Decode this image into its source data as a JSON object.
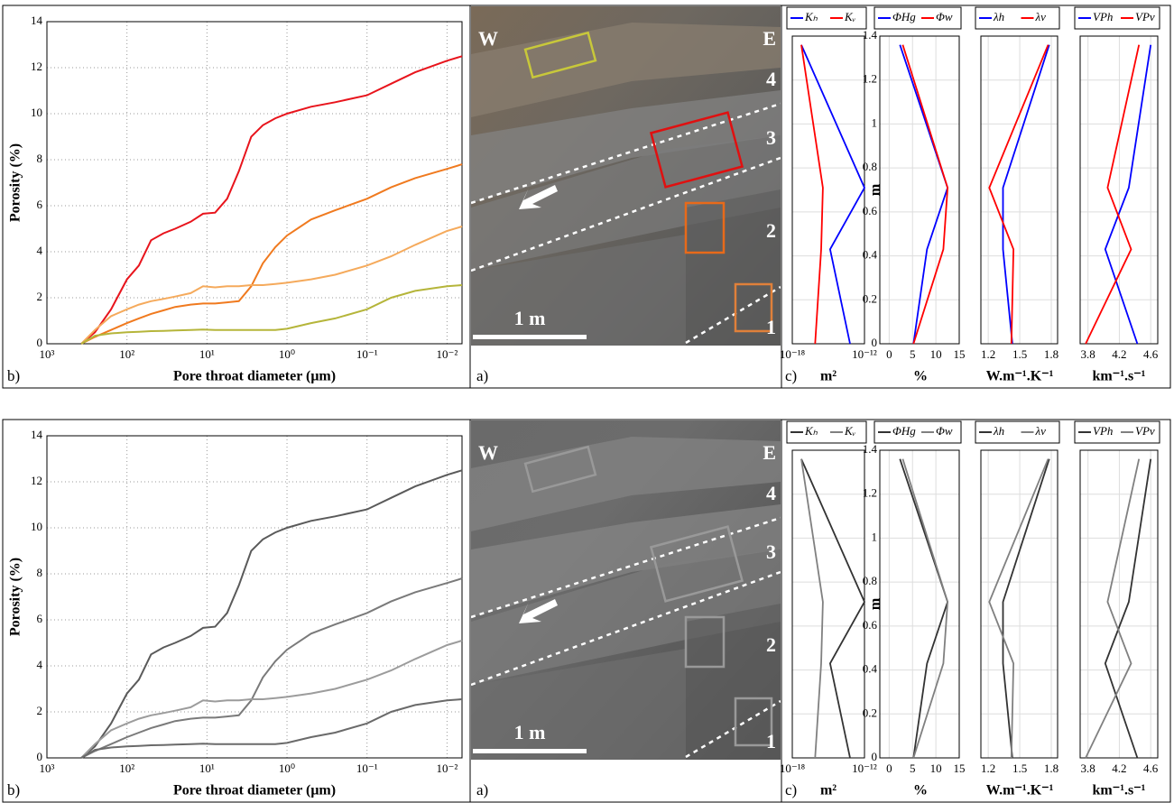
{
  "chart_data": [
    {
      "type": "line",
      "panel_label": "b)",
      "xlabel": "Pore throat diameter (μm)",
      "ylabel": "Porosity (%)",
      "xscale": "log",
      "grid": true,
      "x": [
        372,
        251,
        158,
        100,
        71,
        50,
        35,
        25,
        16,
        11.2,
        7.9,
        5.6,
        4.0,
        2.8,
        2.0,
        1.4,
        1,
        0.5,
        0.25,
        0.1,
        0.05,
        0.025,
        0.01,
        0.0065
      ],
      "xlim": [
        1000,
        0.0065
      ],
      "xticks": [
        {
          "value": 1000,
          "label": "10³"
        },
        {
          "value": 100,
          "label": "10²"
        },
        {
          "value": 10,
          "label": "10¹"
        },
        {
          "value": 1,
          "label": "10⁰"
        },
        {
          "value": 0.1,
          "label": "10⁻¹"
        },
        {
          "value": 0.01,
          "label": "10⁻²"
        }
      ],
      "ylim": [
        0,
        14
      ],
      "yticks": [
        0,
        2,
        4,
        6,
        8,
        10,
        12,
        14
      ],
      "series": [
        {
          "color": "#e8141c",
          "values": [
            0,
            0.5,
            1.5,
            2.8,
            3.4,
            4.5,
            4.8,
            5.0,
            5.3,
            5.65,
            5.7,
            6.3,
            7.5,
            9.0,
            9.5,
            9.8,
            10.0,
            10.3,
            10.5,
            10.8,
            11.3,
            11.8,
            12.3,
            12.5
          ]
        },
        {
          "color": "#f07a1f",
          "values": [
            0,
            0.3,
            0.6,
            0.9,
            1.1,
            1.3,
            1.45,
            1.6,
            1.7,
            1.75,
            1.75,
            1.8,
            1.85,
            2.5,
            3.5,
            4.2,
            4.7,
            5.4,
            5.8,
            6.3,
            6.8,
            7.2,
            7.6,
            7.8
          ]
        },
        {
          "color": "#f5aa5c",
          "values": [
            0,
            0.6,
            1.2,
            1.5,
            1.7,
            1.85,
            1.95,
            2.05,
            2.2,
            2.5,
            2.45,
            2.5,
            2.5,
            2.55,
            2.55,
            2.6,
            2.65,
            2.8,
            3.0,
            3.4,
            3.8,
            4.3,
            4.9,
            5.1
          ]
        },
        {
          "color": "#b5b53a",
          "values": [
            0,
            0.35,
            0.45,
            0.5,
            0.52,
            0.55,
            0.56,
            0.58,
            0.6,
            0.62,
            0.6,
            0.6,
            0.6,
            0.6,
            0.6,
            0.6,
            0.65,
            0.9,
            1.1,
            1.5,
            2.0,
            2.3,
            2.5,
            2.55
          ]
        }
      ]
    },
    {
      "type": "profile",
      "panel_label": "c)",
      "xlabel": "m²",
      "xscale": "log",
      "xlim": [
        1e-18,
        1e-12
      ],
      "xticks": [
        {
          "value": 1e-18,
          "label": "10⁻¹⁸"
        },
        {
          "value": 1e-12,
          "label": "10⁻¹²"
        }
      ],
      "ylim": [
        0,
        1.4
      ],
      "yticks": [
        0,
        0.2,
        0.4,
        0.6,
        0.8,
        1,
        1.2,
        1.4
      ],
      "ytick_labels": false,
      "grid": true,
      "legend": "top",
      "y": [
        1.36,
        0.71,
        0.43,
        0
      ],
      "series": [
        {
          "name": "Kₕ",
          "color": "#0000ff",
          "values": [
            5.6e-18,
            1e-12,
            1.4e-15,
            6.3e-14
          ]
        },
        {
          "name": "Kᵥ",
          "color": "#ff0000",
          "values": [
            5.6e-18,
            3.5e-16,
            2.5e-16,
            7.9e-17
          ]
        }
      ]
    },
    {
      "type": "profile",
      "xlabel": "%",
      "ylabel": "m",
      "xlim": [
        -2,
        15
      ],
      "xticks": [
        0,
        5,
        10,
        15
      ],
      "ylim": [
        0,
        1.4
      ],
      "yticks": [
        0,
        0.2,
        0.4,
        0.6,
        0.8,
        1,
        1.2,
        1.4
      ],
      "ytick_labels": true,
      "grid": true,
      "legend": "top",
      "y": [
        1.36,
        0.71,
        0.43,
        0
      ],
      "series": [
        {
          "name": "ΦHg",
          "color": "#0000ff",
          "values": [
            2.3,
            12.5,
            8.1,
            5.2
          ]
        },
        {
          "name": "Φw",
          "color": "#ff0000",
          "values": [
            2.9,
            12.5,
            11.6,
            5.2
          ]
        }
      ]
    },
    {
      "type": "profile",
      "xlabel": "W.m⁻¹.K⁻¹",
      "xlim": [
        1.13,
        1.86
      ],
      "xticks": [
        1.2,
        1.5,
        1.8
      ],
      "ylim": [
        0,
        1.4
      ],
      "yticks": [
        0,
        0.2,
        0.4,
        0.6,
        0.8,
        1,
        1.2,
        1.4
      ],
      "ytick_labels": false,
      "grid": true,
      "legend": "top",
      "y": [
        1.36,
        0.71,
        0.43,
        0
      ],
      "series": [
        {
          "name": "λh",
          "color": "#0000ff",
          "values": [
            1.78,
            1.34,
            1.34,
            1.43
          ]
        },
        {
          "name": "λv",
          "color": "#ff0000",
          "values": [
            1.77,
            1.21,
            1.44,
            1.42
          ]
        }
      ]
    },
    {
      "type": "profile",
      "xlabel": "km⁻¹.s⁻¹",
      "xlim": [
        3.7,
        4.69
      ],
      "xticks": [
        3.8,
        4.2,
        4.6
      ],
      "ylim": [
        0,
        1.4
      ],
      "yticks": [
        0,
        0.2,
        0.4,
        0.6,
        0.8,
        1,
        1.2,
        1.4
      ],
      "ytick_labels": false,
      "grid": true,
      "legend": "top",
      "y": [
        1.36,
        0.71,
        0.43,
        0
      ],
      "series": [
        {
          "name": "VPh",
          "color": "#0000ff",
          "values": [
            4.6,
            4.32,
            4.02,
            4.43
          ]
        },
        {
          "name": "VPv",
          "color": "#ff0000",
          "values": [
            4.45,
            4.05,
            4.35,
            3.77
          ]
        }
      ]
    },
    {
      "type": "line",
      "panel_label": "b)",
      "xlabel": "Pore throat diameter (μm)",
      "ylabel": "Porosity (%)",
      "xscale": "log",
      "grid": true,
      "x": [
        372,
        251,
        158,
        100,
        71,
        50,
        35,
        25,
        16,
        11.2,
        7.9,
        5.6,
        4.0,
        2.8,
        2.0,
        1.4,
        1,
        0.5,
        0.25,
        0.1,
        0.05,
        0.025,
        0.01,
        0.0065
      ],
      "xlim": [
        1000,
        0.0065
      ],
      "xticks": [
        {
          "value": 1000,
          "label": "10³"
        },
        {
          "value": 100,
          "label": "10²"
        },
        {
          "value": 10,
          "label": "10¹"
        },
        {
          "value": 1,
          "label": "10⁰"
        },
        {
          "value": 0.1,
          "label": "10⁻¹"
        },
        {
          "value": 0.01,
          "label": "10⁻²"
        }
      ],
      "ylim": [
        0,
        14
      ],
      "yticks": [
        0,
        2,
        4,
        6,
        8,
        10,
        12,
        14
      ],
      "series": [
        {
          "color": "#5a5a5a",
          "values": [
            0,
            0.5,
            1.5,
            2.8,
            3.4,
            4.5,
            4.8,
            5.0,
            5.3,
            5.65,
            5.7,
            6.3,
            7.5,
            9.0,
            9.5,
            9.8,
            10.0,
            10.3,
            10.5,
            10.8,
            11.3,
            11.8,
            12.3,
            12.5
          ]
        },
        {
          "color": "#7a7a7a",
          "values": [
            0,
            0.3,
            0.6,
            0.9,
            1.1,
            1.3,
            1.45,
            1.6,
            1.7,
            1.75,
            1.75,
            1.8,
            1.85,
            2.5,
            3.5,
            4.2,
            4.7,
            5.4,
            5.8,
            6.3,
            6.8,
            7.2,
            7.6,
            7.8
          ]
        },
        {
          "color": "#9c9c9c",
          "values": [
            0,
            0.6,
            1.2,
            1.5,
            1.7,
            1.85,
            1.95,
            2.05,
            2.2,
            2.5,
            2.45,
            2.5,
            2.5,
            2.55,
            2.55,
            2.6,
            2.65,
            2.8,
            3.0,
            3.4,
            3.8,
            4.3,
            4.9,
            5.1
          ]
        },
        {
          "color": "#6a6a6a",
          "values": [
            0,
            0.35,
            0.45,
            0.5,
            0.52,
            0.55,
            0.56,
            0.58,
            0.6,
            0.62,
            0.6,
            0.6,
            0.6,
            0.6,
            0.6,
            0.6,
            0.65,
            0.9,
            1.1,
            1.5,
            2.0,
            2.3,
            2.5,
            2.55
          ]
        }
      ]
    },
    {
      "type": "profile",
      "panel_label": "c)",
      "xlabel": "m²",
      "xscale": "log",
      "xlim": [
        1e-18,
        1e-12
      ],
      "xticks": [
        {
          "value": 1e-18,
          "label": "10⁻¹⁸"
        },
        {
          "value": 1e-12,
          "label": "10⁻¹²"
        }
      ],
      "ylim": [
        0,
        1.4
      ],
      "yticks": [
        0,
        0.2,
        0.4,
        0.6,
        0.8,
        1,
        1.2,
        1.4
      ],
      "ytick_labels": false,
      "grid": true,
      "legend": "top",
      "y": [
        1.36,
        0.71,
        0.43,
        0
      ],
      "series": [
        {
          "name": "Kₕ",
          "color": "#333333",
          "values": [
            5.6e-18,
            1e-12,
            1.4e-15,
            6.3e-14
          ]
        },
        {
          "name": "Kᵥ",
          "color": "#808080",
          "values": [
            5.6e-18,
            3.5e-16,
            2.5e-16,
            7.9e-17
          ]
        }
      ]
    },
    {
      "type": "profile",
      "xlabel": "%",
      "ylabel": "m",
      "xlim": [
        -2,
        15
      ],
      "xticks": [
        0,
        5,
        10,
        15
      ],
      "ylim": [
        0,
        1.4
      ],
      "yticks": [
        0,
        0.2,
        0.4,
        0.6,
        0.8,
        1,
        1.2,
        1.4
      ],
      "ytick_labels": true,
      "grid": true,
      "legend": "top",
      "y": [
        1.36,
        0.71,
        0.43,
        0
      ],
      "series": [
        {
          "name": "ΦHg",
          "color": "#333333",
          "values": [
            2.3,
            12.5,
            8.1,
            5.2
          ]
        },
        {
          "name": "Φw",
          "color": "#808080",
          "values": [
            2.9,
            12.5,
            11.6,
            5.2
          ]
        }
      ]
    },
    {
      "type": "profile",
      "xlabel": "W.m⁻¹.K⁻¹",
      "xlim": [
        1.13,
        1.86
      ],
      "xticks": [
        1.2,
        1.5,
        1.8
      ],
      "ylim": [
        0,
        1.4
      ],
      "yticks": [
        0,
        0.2,
        0.4,
        0.6,
        0.8,
        1,
        1.2,
        1.4
      ],
      "ytick_labels": false,
      "grid": true,
      "legend": "top",
      "y": [
        1.36,
        0.71,
        0.43,
        0
      ],
      "series": [
        {
          "name": "λh",
          "color": "#333333",
          "values": [
            1.78,
            1.34,
            1.34,
            1.43
          ]
        },
        {
          "name": "λv",
          "color": "#808080",
          "values": [
            1.77,
            1.21,
            1.44,
            1.42
          ]
        }
      ]
    },
    {
      "type": "profile",
      "xlabel": "km⁻¹.s⁻¹",
      "xlim": [
        3.7,
        4.69
      ],
      "xticks": [
        3.8,
        4.2,
        4.6
      ],
      "ylim": [
        0,
        1.4
      ],
      "yticks": [
        0,
        0.2,
        0.4,
        0.6,
        0.8,
        1,
        1.2,
        1.4
      ],
      "ytick_labels": false,
      "grid": true,
      "legend": "top",
      "y": [
        1.36,
        0.71,
        0.43,
        0
      ],
      "series": [
        {
          "name": "VPh",
          "color": "#333333",
          "values": [
            4.6,
            4.32,
            4.02,
            4.43
          ]
        },
        {
          "name": "VPv",
          "color": "#808080",
          "values": [
            4.45,
            4.05,
            4.35,
            3.77
          ]
        }
      ]
    }
  ],
  "photos": [
    {
      "panel_label": "a)",
      "labels": [
        "W",
        "E",
        "4",
        "3",
        "2",
        "1"
      ],
      "scale_label": "1 m",
      "tone": "color"
    },
    {
      "panel_label": "a)",
      "labels": [
        "W",
        "E",
        "4",
        "3",
        "2",
        "1"
      ],
      "scale_label": "1 m",
      "tone": "gray"
    }
  ]
}
